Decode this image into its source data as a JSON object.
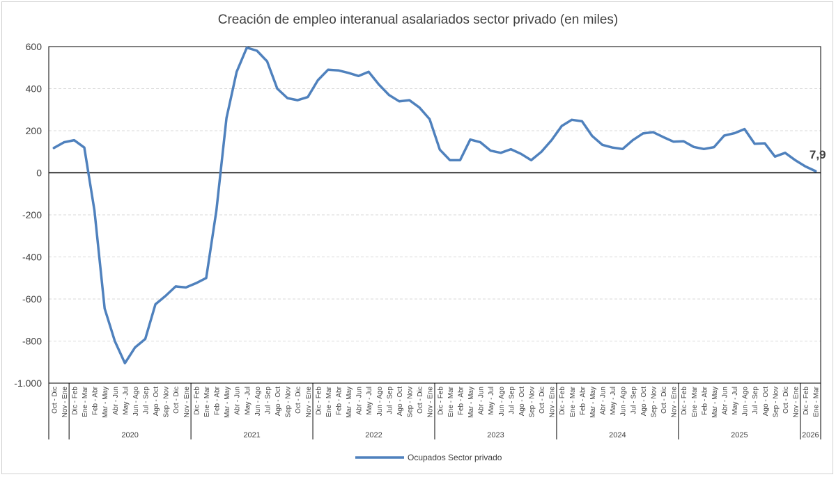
{
  "chart_data": {
    "type": "line",
    "title": "Creación de empleo interanual asalariados sector privado (en miles)",
    "xlabel": "",
    "ylabel": "",
    "ylim": [
      -1000,
      600
    ],
    "yticks": [
      600,
      400,
      200,
      0,
      -200,
      -400,
      -600,
      -800,
      -1000
    ],
    "ytick_labels": [
      "600",
      "400",
      "200",
      "0",
      "-200",
      "-400",
      "-600",
      "-800",
      "-1.000"
    ],
    "grid": true,
    "legend_position": "bottom",
    "line_color": "#4f81bd",
    "categories": [
      "Oct - Dic",
      "Nov - Ene",
      "Dic - Feb",
      "Ene - Mar",
      "Feb - Abr",
      "Mar - May",
      "Abr - Jun",
      "May - Jul",
      "Jun - Ago",
      "Jul - Sep",
      "Ago - Oct",
      "Sep - Nov",
      "Oct - Dic",
      "Nov - Ene",
      "Dic - Feb",
      "Ene - Mar",
      "Feb - Abr",
      "Mar - May",
      "Abr - Jun",
      "May - Jul",
      "Jun - Ago",
      "Jul - Sep",
      "Ago - Oct",
      "Sep - Nov",
      "Oct - Dic",
      "Nov - Ene",
      "Dic - Feb",
      "Ene - Mar",
      "Feb - Abr",
      "Mar - May",
      "Abr - Jun",
      "May - Jul",
      "Jun - Ago",
      "Jul - Sep",
      "Ago - Oct",
      "Sep - Nov",
      "Oct - Dic",
      "Nov - Ene",
      "Dic - Feb",
      "Ene - Mar",
      "Feb - Abr",
      "Mar - May",
      "Abr - Jun",
      "May - Jul",
      "Jun - Ago",
      "Jul - Sep",
      "Ago - Oct",
      "Sep - Nov",
      "Oct - Dic",
      "Nov - Ene",
      "Dic - Feb",
      "Ene - Mar",
      "Feb - Abr",
      "Mar - May",
      "Abr - Jun",
      "May - Jul",
      "Jun - Ago",
      "Jul - Sep",
      "Ago - Oct",
      "Sep - Nov",
      "Oct - Dic",
      "Nov - Ene",
      "Dic - Feb",
      "Ene - Mar",
      "Feb - Abr",
      "Mar - May",
      "Abr - Jun",
      "May - Jul",
      "Jun - Ago",
      "Jul - Sep",
      "Ago - Oct",
      "Sep - Nov",
      "Oct - Dic",
      "Nov - Ene",
      "Dic - Feb",
      "Ene - Mar"
    ],
    "year_groups": [
      {
        "label": "",
        "start": 0,
        "end": 1
      },
      {
        "label": "2020",
        "start": 2,
        "end": 13
      },
      {
        "label": "2021",
        "start": 14,
        "end": 25
      },
      {
        "label": "2022",
        "start": 26,
        "end": 37
      },
      {
        "label": "2023",
        "start": 38,
        "end": 49
      },
      {
        "label": "2024",
        "start": 50,
        "end": 61
      },
      {
        "label": "2025",
        "start": 62,
        "end": 73
      },
      {
        "label": "2026",
        "start": 74,
        "end": 75
      }
    ],
    "series": [
      {
        "name": "Ocupados Sector privado",
        "values": [
          118,
          145,
          155,
          120,
          -180,
          -645,
          -800,
          -905,
          -830,
          -790,
          -625,
          -585,
          -540,
          -545,
          -525,
          -500,
          -180,
          260,
          480,
          595,
          580,
          530,
          400,
          355,
          345,
          360,
          440,
          490,
          487,
          475,
          460,
          480,
          420,
          370,
          340,
          345,
          310,
          255,
          110,
          60,
          60,
          158,
          145,
          105,
          95,
          112,
          90,
          60,
          100,
          155,
          222,
          252,
          245,
          175,
          133,
          120,
          113,
          155,
          187,
          193,
          170,
          148,
          150,
          123,
          113,
          122,
          177,
          188,
          208,
          138,
          140,
          77,
          95,
          60,
          30,
          8
        ]
      }
    ],
    "annotations": [
      {
        "text": "7,9",
        "index": 75
      }
    ]
  }
}
